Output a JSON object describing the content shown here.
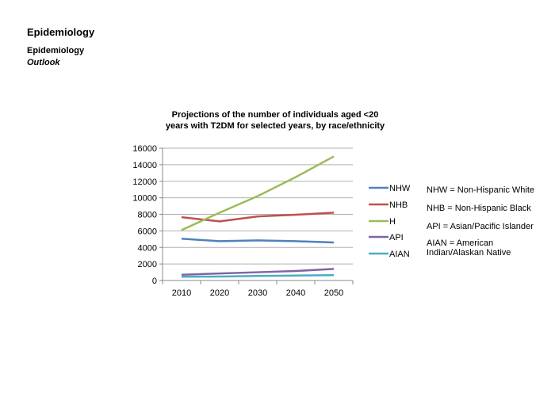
{
  "header": {
    "title": "Epidemiology",
    "subtitle": "Epidemiology",
    "subtitle_italic": "Outlook"
  },
  "chart_data": {
    "type": "line",
    "title_lines": [
      "Projections of the number of individuals aged <20",
      "years with T2DM for selected years, by race/ethnicity"
    ],
    "x": [
      2010,
      2020,
      2030,
      2040,
      2050
    ],
    "xlabel": "",
    "ylabel": "",
    "ylim": [
      0,
      16000
    ],
    "yticks": [
      0,
      2000,
      4000,
      6000,
      8000,
      10000,
      12000,
      14000,
      16000
    ],
    "grid": true,
    "legend_position": "right",
    "series": [
      {
        "name": "NHW",
        "color": "#4f81bd",
        "values": [
          5050,
          4750,
          4850,
          4750,
          4600
        ]
      },
      {
        "name": "NHB",
        "color": "#c0504d",
        "values": [
          7650,
          7150,
          7750,
          7950,
          8200
        ]
      },
      {
        "name": "H",
        "color": "#9bbb59",
        "values": [
          6100,
          8200,
          10200,
          12500,
          15000
        ]
      },
      {
        "name": "API",
        "color": "#8064a2",
        "values": [
          700,
          850,
          1000,
          1150,
          1400
        ]
      },
      {
        "name": "AIAN",
        "color": "#4bacc6",
        "values": [
          450,
          480,
          550,
          600,
          650
        ]
      }
    ]
  },
  "abbreviations": [
    "NHW = Non-Hispanic White",
    "NHB = Non-Hispanic Black",
    "API = Asian/Pacific Islander",
    "AIAN = American Indian/Alaskan Native"
  ]
}
